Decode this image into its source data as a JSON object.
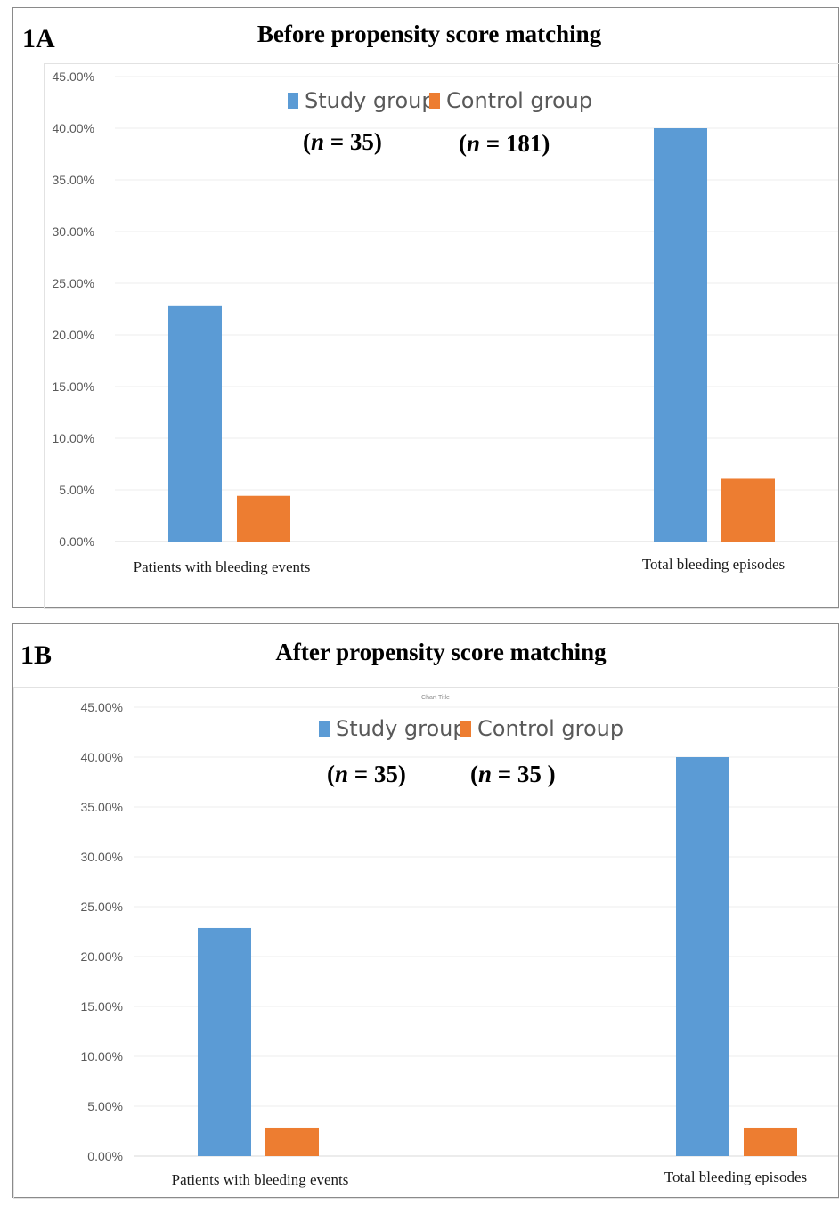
{
  "colors": {
    "study": "#5b9bd5",
    "control": "#ed7d31",
    "axis": "#d9d9d9",
    "grid": "#ececec"
  },
  "chart_data": [
    {
      "panel_label": "1A",
      "title": "Before propensity score matching",
      "inner_title": "",
      "type": "bar",
      "categories": [
        "Patients with bleeding events",
        "Total bleeding episodes"
      ],
      "series": [
        {
          "name": "Study group",
          "n_label": "(n = 35)",
          "n_value": "35",
          "values": [
            22.86,
            40.0
          ]
        },
        {
          "name": "Control group",
          "n_label": "(n = 181)",
          "n_value": "181",
          "values": [
            4.42,
            6.08
          ]
        }
      ],
      "yticks": [
        "0.00%",
        "5.00%",
        "10.00%",
        "15.00%",
        "20.00%",
        "25.00%",
        "30.00%",
        "35.00%",
        "40.00%",
        "45.00%"
      ],
      "ylim": [
        0,
        45
      ],
      "grid": true,
      "legend": "top"
    },
    {
      "panel_label": "1B",
      "title": "After propensity score matching",
      "inner_title": "Chart Title",
      "type": "bar",
      "categories": [
        "Patients with bleeding events",
        "Total bleeding episodes"
      ],
      "series": [
        {
          "name": "Study group",
          "n_label": "(n = 35)",
          "n_value": "35",
          "values": [
            22.86,
            40.0
          ]
        },
        {
          "name": "Control group",
          "n_label": "(n = 35 )",
          "n_value": "35",
          "values": [
            2.86,
            2.86
          ]
        }
      ],
      "yticks": [
        "0.00%",
        "5.00%",
        "10.00%",
        "15.00%",
        "20.00%",
        "25.00%",
        "30.00%",
        "35.00%",
        "40.00%",
        "45.00%"
      ],
      "ylim": [
        0,
        45
      ],
      "grid": true,
      "legend": "top"
    }
  ]
}
